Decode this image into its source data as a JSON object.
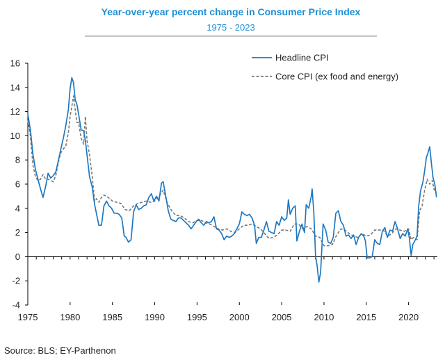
{
  "chart_data": {
    "type": "line",
    "title": "Year-over-year percent change in Consumer Price Index",
    "subtitle": "1975 - 2023",
    "xlabel": "",
    "ylabel": "",
    "xlim": [
      1975,
      2023.4
    ],
    "ylim": [
      -4,
      16
    ],
    "x_ticks": [
      "1975",
      "1980",
      "1985",
      "1990",
      "1995",
      "2000",
      "2005",
      "2010",
      "2015",
      "2020"
    ],
    "y_ticks": [
      "-4",
      "-2",
      "0",
      "2",
      "4",
      "6",
      "8",
      "10",
      "12",
      "14",
      "16"
    ],
    "grid": false,
    "legend_position": "top-right",
    "series": [
      {
        "name": "Headline CPI",
        "color": "#1f78c1",
        "style": "solid",
        "x": [
          1975.0,
          1975.3,
          1975.6,
          1975.9,
          1976.2,
          1976.5,
          1976.8,
          1977.1,
          1977.4,
          1977.7,
          1978.0,
          1978.3,
          1978.6,
          1978.9,
          1979.2,
          1979.5,
          1979.8,
          1980.0,
          1980.2,
          1980.4,
          1980.6,
          1980.8,
          1981.0,
          1981.3,
          1981.6,
          1981.8,
          1982.0,
          1982.3,
          1982.6,
          1982.9,
          1983.1,
          1983.4,
          1983.7,
          1984.0,
          1984.3,
          1984.6,
          1984.9,
          1985.2,
          1985.5,
          1985.8,
          1986.1,
          1986.4,
          1986.6,
          1986.9,
          1987.2,
          1987.5,
          1987.8,
          1988.1,
          1988.4,
          1988.7,
          1989.0,
          1989.3,
          1989.6,
          1989.9,
          1990.2,
          1990.5,
          1990.8,
          1991.0,
          1991.3,
          1991.6,
          1991.9,
          1992.2,
          1992.5,
          1992.8,
          1993.1,
          1993.4,
          1993.7,
          1994.0,
          1994.3,
          1994.6,
          1994.9,
          1995.2,
          1995.5,
          1995.8,
          1996.1,
          1996.4,
          1996.7,
          1997.0,
          1997.3,
          1997.6,
          1997.9,
          1998.2,
          1998.5,
          1998.8,
          1999.1,
          1999.4,
          1999.7,
          2000.0,
          2000.3,
          2000.6,
          2000.9,
          2001.2,
          2001.5,
          2001.8,
          2002.0,
          2002.3,
          2002.6,
          2002.9,
          2003.2,
          2003.5,
          2003.8,
          2004.1,
          2004.4,
          2004.7,
          2005.0,
          2005.3,
          2005.6,
          2005.8,
          2006.0,
          2006.3,
          2006.6,
          2006.8,
          2007.1,
          2007.4,
          2007.7,
          2007.9,
          2008.2,
          2008.5,
          2008.6,
          2008.8,
          2009.0,
          2009.2,
          2009.4,
          2009.6,
          2009.9,
          2010.2,
          2010.5,
          2010.8,
          2011.1,
          2011.4,
          2011.7,
          2012.0,
          2012.3,
          2012.6,
          2012.9,
          2013.2,
          2013.5,
          2013.8,
          2014.1,
          2014.4,
          2014.7,
          2014.9,
          2015.1,
          2015.4,
          2015.7,
          2016.0,
          2016.3,
          2016.6,
          2016.9,
          2017.2,
          2017.5,
          2017.8,
          2018.1,
          2018.4,
          2018.7,
          2019.0,
          2019.3,
          2019.6,
          2019.9,
          2020.1,
          2020.3,
          2020.5,
          2020.8,
          2021.0,
          2021.2,
          2021.4,
          2021.7,
          2021.9,
          2022.1,
          2022.3,
          2022.5,
          2022.7,
          2022.9,
          2023.1,
          2023.3
        ],
        "values": [
          11.8,
          10.5,
          8.5,
          7.2,
          6.4,
          5.6,
          4.9,
          5.8,
          6.9,
          6.5,
          6.7,
          7.0,
          7.9,
          8.9,
          9.8,
          10.9,
          12.2,
          13.9,
          14.8,
          14.4,
          13.0,
          12.6,
          11.8,
          10.5,
          10.4,
          9.6,
          8.4,
          6.6,
          5.8,
          4.3,
          3.6,
          2.6,
          2.6,
          4.2,
          4.6,
          4.2,
          4.0,
          3.6,
          3.6,
          3.5,
          3.2,
          1.7,
          1.6,
          1.2,
          1.4,
          3.7,
          4.3,
          3.9,
          4.0,
          4.2,
          4.3,
          4.9,
          5.2,
          4.6,
          5.0,
          4.6,
          6.1,
          6.2,
          5.0,
          3.8,
          3.1,
          3.0,
          2.9,
          3.2,
          3.2,
          3.0,
          2.8,
          2.6,
          2.3,
          2.6,
          2.9,
          3.1,
          2.8,
          2.6,
          2.9,
          2.8,
          2.9,
          3.3,
          2.3,
          2.2,
          1.9,
          1.4,
          1.7,
          1.6,
          1.7,
          1.9,
          2.3,
          2.7,
          3.7,
          3.5,
          3.4,
          3.5,
          3.2,
          2.6,
          1.1,
          1.6,
          1.6,
          2.2,
          2.9,
          2.1,
          2.0,
          1.9,
          2.9,
          2.6,
          3.3,
          3.0,
          3.2,
          4.7,
          3.5,
          4.0,
          4.2,
          1.3,
          2.1,
          2.7,
          2.0,
          4.3,
          4.0,
          5.0,
          5.6,
          3.7,
          0.1,
          -0.8,
          -2.1,
          -1.3,
          2.7,
          2.2,
          1.2,
          1.1,
          1.6,
          3.6,
          3.8,
          2.9,
          2.6,
          1.7,
          1.8,
          1.5,
          1.8,
          1.0,
          1.6,
          1.9,
          1.7,
          1.3,
          -0.1,
          -0.1,
          0.0,
          1.4,
          1.1,
          1.0,
          2.1,
          2.4,
          1.6,
          2.2,
          2.1,
          2.9,
          2.3,
          1.5,
          1.9,
          1.7,
          2.3,
          1.5,
          0.1,
          1.0,
          1.4,
          1.7,
          4.2,
          5.4,
          6.2,
          7.1,
          8.2,
          8.6,
          9.1,
          7.7,
          6.5,
          6.0,
          4.9
        ]
      },
      {
        "name": "Core CPI (ex food and energy)",
        "color": "#777777",
        "style": "dashed",
        "x": [
          1975.0,
          1975.3,
          1975.6,
          1975.9,
          1976.2,
          1976.5,
          1976.8,
          1977.1,
          1977.4,
          1977.7,
          1978.0,
          1978.3,
          1978.6,
          1978.9,
          1979.2,
          1979.5,
          1979.8,
          1980.0,
          1980.2,
          1980.4,
          1980.6,
          1980.8,
          1981.0,
          1981.3,
          1981.6,
          1981.8,
          1982.0,
          1982.3,
          1982.6,
          1982.9,
          1983.1,
          1983.4,
          1983.7,
          1984.0,
          1984.5,
          1985.0,
          1985.5,
          1986.0,
          1986.5,
          1987.0,
          1987.5,
          1988.0,
          1988.5,
          1989.0,
          1989.5,
          1990.0,
          1990.5,
          1991.0,
          1991.5,
          1992.0,
          1992.5,
          1993.0,
          1993.5,
          1994.0,
          1994.5,
          1995.0,
          1995.5,
          1996.0,
          1996.5,
          1997.0,
          1997.5,
          1998.0,
          1998.5,
          1999.0,
          1999.5,
          2000.0,
          2000.5,
          2001.0,
          2001.5,
          2002.0,
          2002.5,
          2003.0,
          2003.5,
          2004.0,
          2004.5,
          2005.0,
          2005.5,
          2006.0,
          2006.5,
          2007.0,
          2007.5,
          2008.0,
          2008.5,
          2009.0,
          2009.5,
          2010.0,
          2010.5,
          2011.0,
          2011.5,
          2012.0,
          2012.5,
          2013.0,
          2013.5,
          2014.0,
          2014.5,
          2015.0,
          2015.5,
          2016.0,
          2016.5,
          2017.0,
          2017.5,
          2018.0,
          2018.5,
          2019.0,
          2019.5,
          2020.0,
          2020.3,
          2020.6,
          2021.0,
          2021.3,
          2021.6,
          2021.9,
          2022.2,
          2022.5,
          2022.8,
          2023.0,
          2023.3
        ],
        "values": [
          11.3,
          10.0,
          7.6,
          6.6,
          6.3,
          6.4,
          6.8,
          6.4,
          6.4,
          6.3,
          6.2,
          6.7,
          7.8,
          8.6,
          8.9,
          9.2,
          10.3,
          11.6,
          12.4,
          13.3,
          12.2,
          11.1,
          11.1,
          9.8,
          9.3,
          11.6,
          9.6,
          8.4,
          6.7,
          4.6,
          4.8,
          4.5,
          4.9,
          5.1,
          4.9,
          4.6,
          4.5,
          4.4,
          3.9,
          3.8,
          4.2,
          4.4,
          4.5,
          4.6,
          4.5,
          4.6,
          5.0,
          5.5,
          4.4,
          3.8,
          3.4,
          3.4,
          3.2,
          2.9,
          2.8,
          3.0,
          3.0,
          2.8,
          2.7,
          2.5,
          2.3,
          2.2,
          2.3,
          2.1,
          2.0,
          2.3,
          2.6,
          2.6,
          2.7,
          2.5,
          2.3,
          1.9,
          1.5,
          1.6,
          1.8,
          2.2,
          2.2,
          2.1,
          2.7,
          2.7,
          2.3,
          2.5,
          2.3,
          1.7,
          1.6,
          0.9,
          0.9,
          1.0,
          1.8,
          2.3,
          2.2,
          1.9,
          1.7,
          1.6,
          1.9,
          1.7,
          1.8,
          2.2,
          2.2,
          2.2,
          1.7,
          1.9,
          2.3,
          2.2,
          2.1,
          2.3,
          1.4,
          1.6,
          1.4,
          3.8,
          4.2,
          5.5,
          6.4,
          6.0,
          6.3,
          5.6,
          5.3
        ]
      }
    ],
    "axis_color": "#000000"
  },
  "source": "Source: BLS; EY-Parthenon",
  "colors": {
    "title": "#1f8fd6",
    "subtitle": "#1f8fd6",
    "divider": "#888888"
  }
}
